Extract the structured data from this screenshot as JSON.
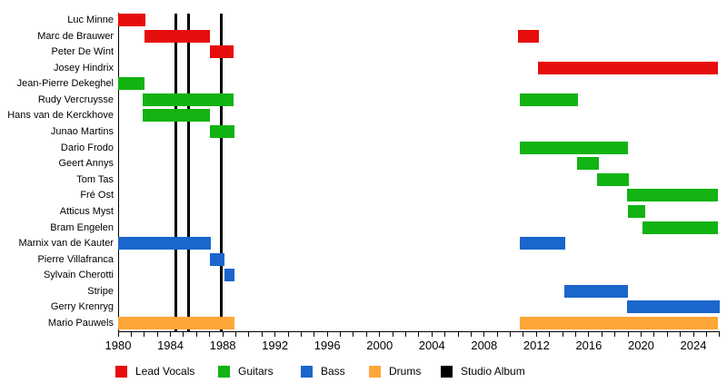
{
  "chart_data": {
    "type": "timeline",
    "variant": "band-membership-gantt",
    "title": "",
    "axis": {
      "min": 1980,
      "max": 2026,
      "tick_step": 1,
      "label_step": 4,
      "labels": [
        "1980",
        "1984",
        "1988",
        "1992",
        "1996",
        "2000",
        "2004",
        "2008",
        "2012",
        "2016",
        "2020",
        "2024"
      ]
    },
    "studio_album_years": [
      1984.4,
      1985.4,
      1987.9
    ],
    "colors": {
      "lead_vocals": "#E60D0D",
      "guitars": "#12B312",
      "bass": "#1A66CC",
      "drums": "#FFA638",
      "studio_album": "#000000",
      "axis": "#000000",
      "background": "#FFFFFF"
    },
    "members": [
      {
        "name": "Luc Minne",
        "role": "lead_vocals",
        "periods": [
          [
            1980.0,
            1982.1
          ]
        ]
      },
      {
        "name": "Marc de Brauwer",
        "role": "lead_vocals",
        "periods": [
          [
            1982.0,
            1987.0
          ],
          [
            2010.6,
            2012.2
          ]
        ]
      },
      {
        "name": "Peter De Wint",
        "role": "lead_vocals",
        "periods": [
          [
            1987.0,
            1988.8
          ]
        ]
      },
      {
        "name": "Josey Hindrix",
        "role": "lead_vocals",
        "periods": [
          [
            2012.1,
            2025.9
          ]
        ]
      },
      {
        "name": "Jean-Pierre Dekeghel",
        "role": "guitars",
        "periods": [
          [
            1980.0,
            1982.0
          ]
        ]
      },
      {
        "name": "Rudy Vercruysse",
        "role": "guitars",
        "periods": [
          [
            1981.9,
            1988.8
          ],
          [
            2010.7,
            2015.2
          ]
        ]
      },
      {
        "name": "Hans van de Kerckhove",
        "role": "guitars",
        "periods": [
          [
            1981.9,
            1987.0
          ]
        ]
      },
      {
        "name": "Junao Martins",
        "role": "guitars",
        "periods": [
          [
            1987.0,
            1988.9
          ]
        ]
      },
      {
        "name": "Dario Frodo",
        "role": "guitars",
        "periods": [
          [
            2010.7,
            2019.0
          ]
        ]
      },
      {
        "name": "Geert Annys",
        "role": "guitars",
        "periods": [
          [
            2015.1,
            2016.8
          ]
        ]
      },
      {
        "name": "Tom Tas",
        "role": "guitars",
        "periods": [
          [
            2016.6,
            2019.1
          ]
        ]
      },
      {
        "name": "Fré Ost",
        "role": "guitars",
        "periods": [
          [
            2018.9,
            2025.9
          ]
        ]
      },
      {
        "name": "Atticus Myst",
        "role": "guitars",
        "periods": [
          [
            2019.0,
            2020.3
          ]
        ]
      },
      {
        "name": "Bram Engelen",
        "role": "guitars",
        "periods": [
          [
            2020.1,
            2025.9
          ]
        ]
      },
      {
        "name": "Marnix van de Kauter",
        "role": "bass",
        "periods": [
          [
            1980.0,
            1987.1
          ],
          [
            2010.7,
            2014.2
          ]
        ]
      },
      {
        "name": "Pierre Villafranca",
        "role": "bass",
        "periods": [
          [
            1987.0,
            1988.1
          ]
        ]
      },
      {
        "name": "Sylvain Cherotti",
        "role": "bass",
        "periods": [
          [
            1988.1,
            1988.9
          ]
        ]
      },
      {
        "name": "Stripe",
        "role": "bass",
        "periods": [
          [
            2014.1,
            2019.0
          ]
        ]
      },
      {
        "name": "Gerry Krenryg",
        "role": "bass",
        "periods": [
          [
            2018.9,
            2026.0
          ]
        ]
      },
      {
        "name": "Mario Pauwels",
        "role": "drums",
        "periods": [
          [
            1980.0,
            1988.9
          ],
          [
            2010.7,
            2025.9
          ]
        ]
      }
    ],
    "legend": {
      "items": [
        {
          "label": "Lead Vocals",
          "color": "#E60D0D"
        },
        {
          "label": "Guitars",
          "color": "#12B312"
        },
        {
          "label": "Bass",
          "color": "#1A66CC"
        },
        {
          "label": "Drums",
          "color": "#FFA638"
        },
        {
          "label": "Studio Album",
          "color": "#000000"
        }
      ]
    }
  }
}
